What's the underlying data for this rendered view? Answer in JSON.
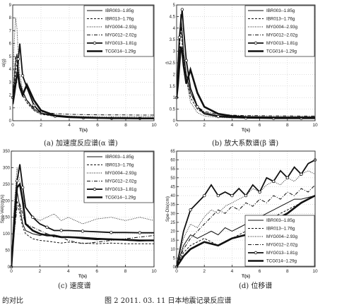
{
  "legend": [
    "IBR003--1.85g",
    "IBR013--1.76g",
    "MYG004--2.93g",
    "MYG012--2.02g",
    "MYG013--1.81g",
    "TCG014--1.29g"
  ],
  "captions": {
    "a": "(a) 加速度反应谱(α 谱)",
    "b": "(b) 放大系数谱(β 谱)",
    "c": "(c) 速度谱",
    "d": "(d) 位移谱"
  },
  "footer": {
    "left": "的对比",
    "figure": "图 2    2011. 03. 11 日本地震记录反应谱"
  },
  "chart_data": [
    {
      "type": "line",
      "panel": "a",
      "xlabel": "T(s)",
      "ylabel": "α(g)",
      "xlim": [
        0,
        10
      ],
      "ylim": [
        0,
        9
      ],
      "xticks": [
        0,
        2,
        4,
        6,
        8,
        10
      ],
      "yticks": [
        0,
        1,
        2,
        3,
        4,
        5,
        6,
        7,
        8,
        9
      ],
      "legend_position": "top-right",
      "x": [
        0,
        0.1,
        0.2,
        0.3,
        0.4,
        0.5,
        0.7,
        1,
        1.5,
        2,
        3,
        4,
        5,
        6,
        7,
        8,
        9,
        10
      ],
      "series": [
        {
          "name": "IBR003--1.85g",
          "values": [
            1.85,
            3.0,
            4.5,
            5.2,
            4.0,
            3.0,
            2.3,
            1.6,
            0.9,
            0.6,
            0.4,
            0.3,
            0.26,
            0.24,
            0.22,
            0.2,
            0.2,
            0.2
          ]
        },
        {
          "name": "IBR013--1.76g",
          "values": [
            1.76,
            2.6,
            3.8,
            4.4,
            3.6,
            2.8,
            2.0,
            1.4,
            0.8,
            0.5,
            0.35,
            0.3,
            0.27,
            0.25,
            0.23,
            0.22,
            0.21,
            0.2
          ]
        },
        {
          "name": "MYG004--2.93g",
          "values": [
            2.93,
            6.0,
            8.0,
            7.2,
            5.0,
            3.6,
            2.4,
            1.5,
            0.8,
            0.5,
            0.4,
            0.36,
            0.33,
            0.32,
            0.3,
            0.3,
            0.3,
            0.3
          ]
        },
        {
          "name": "MYG012--2.02g",
          "values": [
            2.02,
            3.2,
            5.0,
            4.6,
            3.6,
            3.0,
            2.2,
            1.6,
            1.0,
            0.7,
            0.55,
            0.5,
            0.48,
            0.46,
            0.45,
            0.45,
            0.44,
            0.44
          ]
        },
        {
          "name": "MYG013--1.81g",
          "values": [
            1.81,
            2.4,
            3.0,
            3.4,
            4.8,
            6.0,
            3.5,
            2.6,
            1.2,
            0.6,
            0.35,
            0.25,
            0.22,
            0.2,
            0.19,
            0.18,
            0.18,
            0.18
          ]
        },
        {
          "name": "TCG014--1.29g",
          "values": [
            1.29,
            2.0,
            2.8,
            3.6,
            3.4,
            2.6,
            2.0,
            2.8,
            1.6,
            0.8,
            0.4,
            0.3,
            0.25,
            0.22,
            0.2,
            0.2,
            0.18,
            0.18
          ]
        }
      ]
    },
    {
      "type": "line",
      "panel": "b",
      "xlabel": "T(s)",
      "ylabel": "β",
      "xlim": [
        0,
        10
      ],
      "ylim": [
        0,
        5
      ],
      "xticks": [
        0,
        2,
        4,
        6,
        8,
        10
      ],
      "yticks": [
        0,
        0.5,
        1,
        1.5,
        2,
        2.5,
        3,
        3.5,
        4,
        4.5,
        5
      ],
      "legend_position": "top-right",
      "x": [
        0,
        0.1,
        0.2,
        0.3,
        0.4,
        0.5,
        0.7,
        1,
        1.5,
        2,
        3,
        4,
        5,
        6,
        7,
        8,
        9,
        10
      ],
      "series": [
        {
          "name": "IBR003--1.85g",
          "values": [
            1.0,
            2.0,
            3.4,
            4.6,
            3.8,
            3.0,
            2.0,
            1.2,
            0.6,
            0.35,
            0.22,
            0.18,
            0.16,
            0.15,
            0.15,
            0.14,
            0.14,
            0.14
          ]
        },
        {
          "name": "IBR013--1.76g",
          "values": [
            1.0,
            1.8,
            3.0,
            4.0,
            3.4,
            2.6,
            1.8,
            1.0,
            0.5,
            0.3,
            0.2,
            0.17,
            0.16,
            0.15,
            0.15,
            0.14,
            0.14,
            0.14
          ]
        },
        {
          "name": "MYG004--2.93g",
          "values": [
            1.0,
            2.4,
            3.8,
            4.4,
            4.0,
            3.0,
            1.8,
            0.8,
            0.35,
            0.2,
            0.14,
            0.12,
            0.12,
            0.11,
            0.11,
            0.11,
            0.1,
            0.1
          ]
        },
        {
          "name": "MYG012--2.02g",
          "values": [
            1.0,
            2.0,
            3.2,
            4.2,
            3.6,
            2.8,
            2.0,
            1.2,
            0.6,
            0.4,
            0.28,
            0.24,
            0.22,
            0.22,
            0.21,
            0.21,
            0.2,
            0.2
          ]
        },
        {
          "name": "MYG013--1.81g",
          "values": [
            1.0,
            2.4,
            3.6,
            4.2,
            4.8,
            4.0,
            2.6,
            1.4,
            0.6,
            0.3,
            0.18,
            0.14,
            0.12,
            0.11,
            0.1,
            0.1,
            0.1,
            0.1
          ]
        },
        {
          "name": "TCG014--1.29g",
          "values": [
            1.0,
            1.6,
            2.4,
            3.2,
            3.0,
            2.4,
            1.6,
            2.2,
            1.2,
            0.6,
            0.3,
            0.2,
            0.16,
            0.15,
            0.14,
            0.14,
            0.14,
            0.14
          ]
        }
      ]
    },
    {
      "type": "line",
      "panel": "c",
      "xlabel": "T(s)",
      "ylabel": "Spe-Vel(cm/s)",
      "xlim": [
        0,
        10
      ],
      "ylim": [
        0,
        350
      ],
      "xticks": [
        0,
        2,
        4,
        6,
        8,
        10
      ],
      "yticks": [
        0,
        50,
        100,
        150,
        200,
        250,
        300,
        350
      ],
      "legend_position": "top-right",
      "x": [
        0,
        0.2,
        0.4,
        0.6,
        0.8,
        1,
        1.5,
        2,
        2.5,
        3,
        3.5,
        4,
        5,
        6,
        7,
        8,
        9,
        10
      ],
      "series": [
        {
          "name": "IBR003--1.85g",
          "values": [
            0,
            150,
            230,
            180,
            130,
            110,
            100,
            95,
            100,
            92,
            88,
            90,
            85,
            82,
            85,
            80,
            78,
            80
          ]
        },
        {
          "name": "IBR013--1.76g",
          "values": [
            0,
            120,
            200,
            160,
            120,
            100,
            85,
            80,
            78,
            75,
            72,
            75,
            72,
            70,
            72,
            70,
            70,
            70
          ]
        },
        {
          "name": "MYG004--2.93g",
          "values": [
            0,
            180,
            300,
            260,
            200,
            180,
            150,
            140,
            150,
            160,
            140,
            150,
            130,
            145,
            150,
            140,
            150,
            140
          ]
        },
        {
          "name": "MYG012--2.02g",
          "values": [
            0,
            100,
            180,
            190,
            160,
            130,
            120,
            110,
            100,
            90,
            90,
            80,
            70,
            75,
            80,
            85,
            90,
            95
          ]
        },
        {
          "name": "MYG013--1.81g",
          "values": [
            0,
            150,
            260,
            310,
            240,
            180,
            150,
            130,
            120,
            110,
            110,
            110,
            108,
            106,
            104,
            104,
            103,
            103
          ]
        },
        {
          "name": "TCG014--1.29g",
          "values": [
            0,
            120,
            240,
            250,
            200,
            130,
            110,
            100,
            95,
            95,
            90,
            90,
            88,
            85,
            83,
            82,
            80,
            80
          ]
        }
      ]
    },
    {
      "type": "line",
      "panel": "d",
      "xlabel": "T(s)",
      "ylabel": "Spe-Dis(cm)",
      "xlim": [
        0,
        10
      ],
      "ylim": [
        0,
        65
      ],
      "xticks": [
        0,
        2,
        4,
        6,
        8,
        10
      ],
      "yticks": [
        0,
        5,
        10,
        15,
        20,
        25,
        30,
        35,
        40,
        45,
        50,
        55,
        60,
        65
      ],
      "legend_position": "bottom-right",
      "x": [
        0,
        0.5,
        1,
        1.5,
        2,
        2.5,
        3,
        3.5,
        4,
        4.5,
        5,
        5.5,
        6,
        6.5,
        7,
        7.5,
        8,
        8.5,
        9,
        9.5,
        10
      ],
      "series": [
        {
          "name": "IBR003--1.85g",
          "values": [
            0,
            12,
            18,
            16,
            18,
            20,
            18,
            22,
            20,
            22,
            24,
            26,
            28,
            30,
            32,
            34,
            36,
            38,
            38,
            39,
            40
          ]
        },
        {
          "name": "IBR013--1.76g",
          "values": [
            0,
            8,
            12,
            14,
            16,
            14,
            12,
            14,
            16,
            18,
            20,
            22,
            24,
            26,
            28,
            30,
            32,
            34,
            36,
            38,
            40
          ]
        },
        {
          "name": "MYG004--2.93g",
          "values": [
            0,
            16,
            24,
            22,
            28,
            32,
            30,
            34,
            36,
            38,
            40,
            44,
            42,
            46,
            48,
            46,
            50,
            48,
            52,
            54,
            52
          ]
        },
        {
          "name": "MYG012--2.02g",
          "values": [
            0,
            10,
            16,
            20,
            24,
            28,
            32,
            30,
            34,
            32,
            36,
            34,
            38,
            36,
            40,
            38,
            42,
            40,
            44,
            42,
            46
          ]
        },
        {
          "name": "MYG013--1.81g",
          "values": [
            0,
            20,
            32,
            36,
            40,
            46,
            40,
            42,
            40,
            44,
            40,
            46,
            42,
            50,
            48,
            54,
            50,
            56,
            52,
            58,
            60
          ]
        },
        {
          "name": "TCG014--1.29g",
          "values": [
            0,
            6,
            10,
            12,
            14,
            13,
            12,
            14,
            16,
            17,
            18,
            20,
            22,
            24,
            26,
            28,
            30,
            33,
            36,
            38,
            40
          ]
        }
      ]
    }
  ]
}
